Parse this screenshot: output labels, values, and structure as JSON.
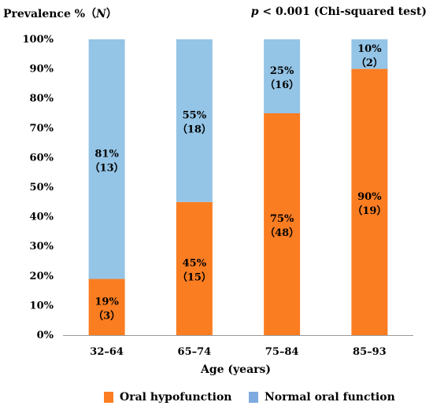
{
  "colors": {
    "hypo": "#fb7d22",
    "normal": "#94c4e6",
    "legend_normal": "#7eaadf"
  },
  "header": {
    "ylabel_text": "Prevalence %（",
    "ylabel_n": "N",
    "ylabel_close": "）",
    "stat_p": "p",
    "stat_rest": " < 0.001 (Chi-squared test)"
  },
  "chart_data": {
    "type": "bar",
    "stacked": true,
    "xlabel": "Age (years)",
    "ylabel": "Prevalence % (N)",
    "ylim": [
      0,
      100
    ],
    "yticks": [
      "0%",
      "10%",
      "20%",
      "30%",
      "40%",
      "50%",
      "60%",
      "70%",
      "80%",
      "90%",
      "100%"
    ],
    "categories": [
      "32–64",
      "65–74",
      "75–84",
      "85–93"
    ],
    "series": [
      {
        "name": "Oral hypofunction",
        "values": [
          19,
          45,
          75,
          90
        ],
        "labels": [
          "19%",
          "45%",
          "75%",
          "90%"
        ],
        "counts": [
          "（3）",
          "（15）",
          "（48）",
          "（19）"
        ]
      },
      {
        "name": "Normal oral function",
        "values": [
          81,
          55,
          25,
          10
        ],
        "labels": [
          "81%",
          "55%",
          "25%",
          "10%"
        ],
        "counts": [
          "（13）",
          "（18）",
          "（16）",
          "（2）"
        ]
      }
    ],
    "legend": "bottom",
    "grid": false
  }
}
